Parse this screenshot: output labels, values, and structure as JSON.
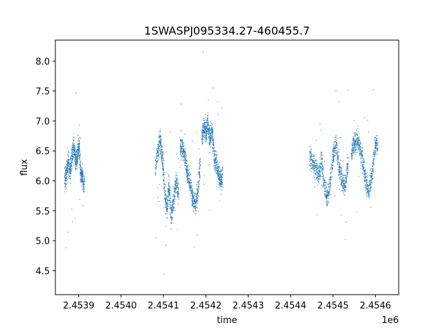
{
  "chart_data": {
    "type": "scatter",
    "title": "1SWASPJ095334.27-460455.7",
    "xlabel": "time",
    "ylabel": "flux",
    "x_offset_label": "1e6",
    "xlim": [
      2453845,
      2454655
    ],
    "ylim": [
      4.1,
      8.35
    ],
    "x_ticks": [
      2453900,
      2454000,
      2454100,
      2454200,
      2454300,
      2454400,
      2454500,
      2454600
    ],
    "x_tick_labels": [
      "2.4539",
      "2.4540",
      "2.4541",
      "2.4542",
      "2.4543",
      "2.4544",
      "2.4545",
      "2.4546"
    ],
    "y_ticks": [
      4.5,
      5.0,
      5.5,
      6.0,
      6.5,
      7.0,
      7.5,
      8.0
    ],
    "y_tick_labels": [
      "4.5",
      "5.0",
      "5.5",
      "6.0",
      "6.5",
      "7.0",
      "7.5",
      "8.0"
    ],
    "grid": false,
    "marker_color": "#1f77b4",
    "series": [
      {
        "segments": [
          {
            "x": [
              2453867,
              2453871,
              2453875,
              2453880,
              2453884,
              2453889,
              2453893,
              2453897,
              2453901,
              2453905,
              2453909,
              2453914
            ],
            "y": [
              6.0,
              6.1,
              6.3,
              6.15,
              6.4,
              6.55,
              6.3,
              6.45,
              6.6,
              6.1,
              6.05,
              5.9
            ]
          },
          {
            "x": [
              2454081,
              2454087,
              2454093,
              2454098,
              2454103,
              2454108,
              2454113,
              2454118,
              2454124,
              2454130,
              2454136
            ],
            "y": [
              6.2,
              6.5,
              6.7,
              6.35,
              5.8,
              5.5,
              5.9,
              5.4,
              5.65,
              6.0,
              5.8
            ]
          },
          {
            "x": [
              2454139,
              2454145,
              2454151,
              2454157,
              2454163,
              2454169,
              2454175,
              2454181,
              2454187
            ],
            "y": [
              6.6,
              6.55,
              6.4,
              6.1,
              5.95,
              5.7,
              5.6,
              5.8,
              6.3
            ]
          },
          {
            "x": [
              2454190,
              2454195,
              2454200,
              2454205,
              2454210,
              2454215,
              2454220,
              2454225,
              2454230,
              2454235,
              2454240
            ],
            "y": [
              6.75,
              6.9,
              6.8,
              6.95,
              6.7,
              6.85,
              6.4,
              6.3,
              6.1,
              6.0,
              6.05
            ]
          },
          {
            "x": [
              2454445,
              2454452,
              2454459,
              2454466,
              2454473,
              2454480,
              2454487,
              2454494,
              2454501,
              2454508,
              2454515,
              2454522,
              2454529,
              2454536
            ],
            "y": [
              6.4,
              6.3,
              6.2,
              6.1,
              6.35,
              5.9,
              5.7,
              6.0,
              6.45,
              6.6,
              6.2,
              6.0,
              5.95,
              6.3
            ]
          },
          {
            "x": [
              2454543,
              2454550,
              2454557,
              2454564,
              2454571,
              2454578,
              2454585,
              2454592,
              2454599,
              2454606
            ],
            "y": [
              6.5,
              6.6,
              6.7,
              6.55,
              6.3,
              6.0,
              5.8,
              6.1,
              6.55,
              6.6
            ]
          }
        ]
      }
    ]
  }
}
